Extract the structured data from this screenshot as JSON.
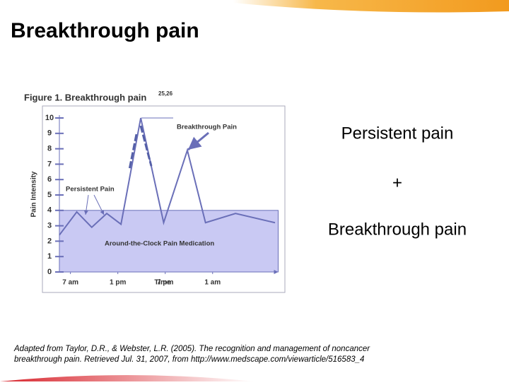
{
  "slide": {
    "title": "Breakthrough pain",
    "right_text": [
      "Persistent pain",
      "+",
      "Breakthrough pain"
    ],
    "citation": [
      "Adapted from Taylor, D.R., & Webster, L.R. (2005). The recognition and management of noncancer",
      "breakthrough pain. Retrieved Jul. 31, 2007, from http://www.medscape.com/viewarticle/516583_4"
    ]
  },
  "chart_data": {
    "type": "line",
    "title": "Figure 1. Breakthrough pain",
    "title_superscript": "25,26",
    "x_label": "Time",
    "y_label": "Pain Intensity",
    "x": [
      -1.4,
      0.8,
      2.7,
      4.6,
      6.4,
      8.9,
      11.8,
      14.8,
      17.1,
      20.9,
      25.9
    ],
    "series": [
      {
        "color": "#6a6fb8",
        "values": [
          2.4,
          3.9,
          2.9,
          3.8,
          3.1,
          10,
          3.2,
          7.9,
          3.2,
          3.8,
          3.2
        ]
      }
    ],
    "band": {
      "label": "Around-the-Clock Pain Medication",
      "value": 4,
      "color": "#c9c9f3"
    },
    "annotations": [
      "Breakthrough Pain",
      "Persistent Pain"
    ],
    "xlim": [
      -1.4,
      26.3
    ],
    "ylim": [
      0,
      10
    ],
    "xticks": [
      {
        "value": 0,
        "label": "7 am"
      },
      {
        "value": 6,
        "label": "1 pm"
      },
      {
        "value": 12,
        "label": "7 pm"
      },
      {
        "value": 18,
        "label": "1 am"
      }
    ],
    "yticks": [
      0,
      1,
      2,
      3,
      4,
      5,
      6,
      7,
      8,
      9,
      10
    ]
  }
}
